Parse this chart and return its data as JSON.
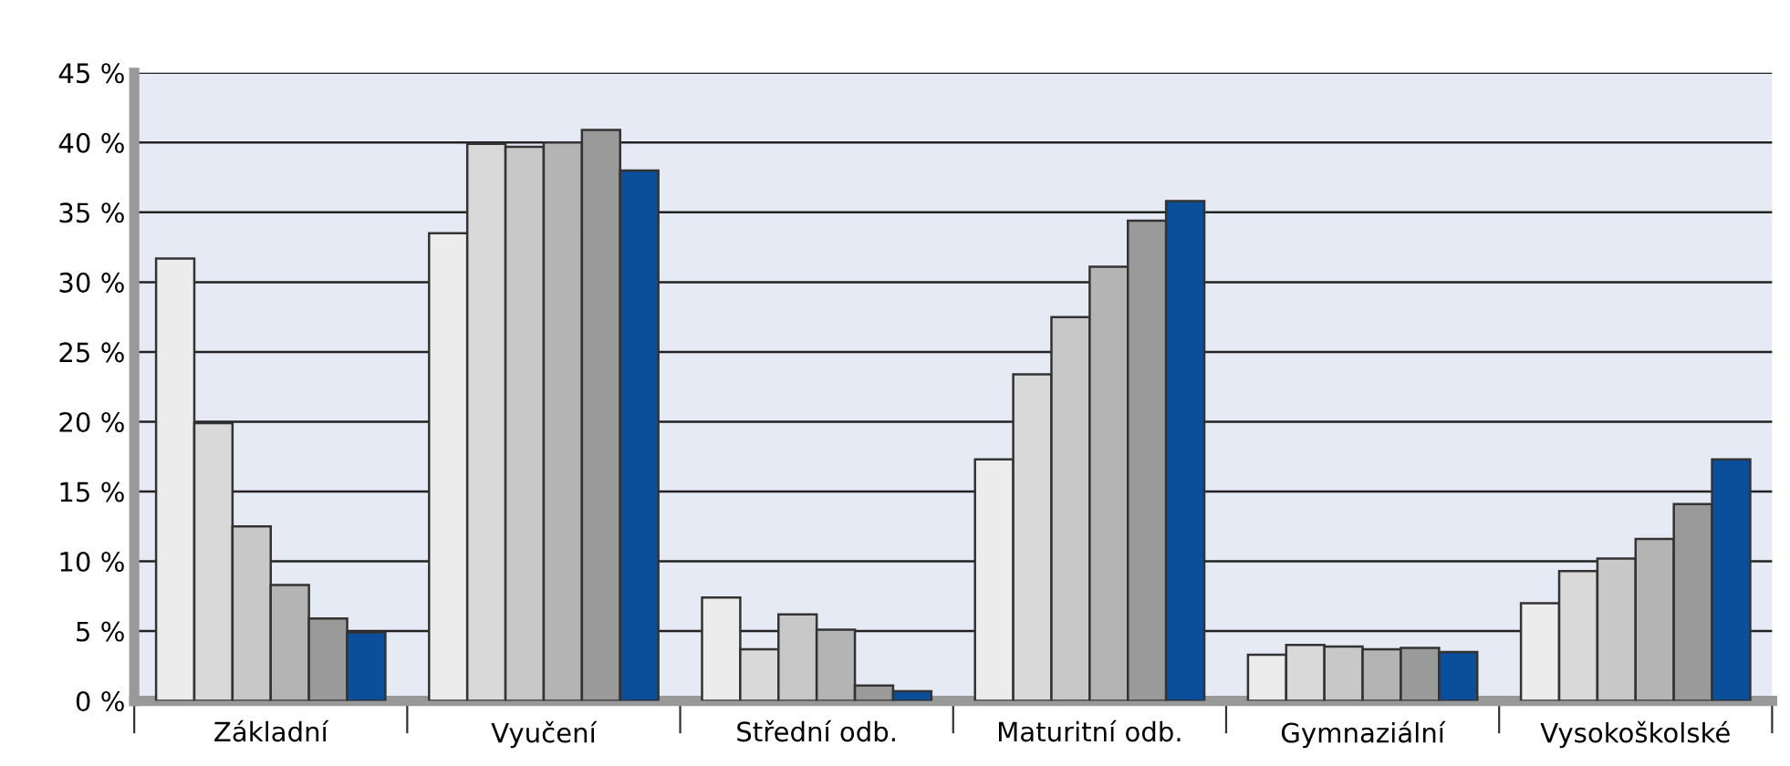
{
  "chart_data": {
    "type": "bar",
    "categories": [
      "Základní",
      "Vyučení",
      "Střední odb.",
      "Maturitní odb.",
      "Gymnaziální",
      "Vysokoškolské"
    ],
    "series": [
      {
        "color": "#ececec",
        "values": [
          31.7,
          33.5,
          7.4,
          17.3,
          3.3,
          7.0
        ]
      },
      {
        "color": "#d9d9d9",
        "values": [
          19.9,
          39.9,
          3.7,
          23.4,
          4.0,
          9.3
        ]
      },
      {
        "color": "#c8c8c8",
        "values": [
          12.5,
          39.7,
          6.2,
          27.5,
          3.9,
          10.2
        ]
      },
      {
        "color": "#b4b4b4",
        "values": [
          8.3,
          40.0,
          5.1,
          31.1,
          3.7,
          11.6
        ]
      },
      {
        "color": "#9a9a9a",
        "values": [
          5.9,
          40.9,
          1.1,
          34.4,
          3.8,
          14.1
        ]
      },
      {
        "color": "#0b4f9a",
        "values": [
          4.9,
          38.0,
          0.7,
          35.8,
          3.5,
          17.3
        ]
      }
    ],
    "ylim": [
      0,
      45
    ],
    "yticks": [
      {
        "value": 0,
        "label": "0 %"
      },
      {
        "value": 5,
        "label": "5 %"
      },
      {
        "value": 10,
        "label": "10 %"
      },
      {
        "value": 15,
        "label": "15 %"
      },
      {
        "value": 20,
        "label": "20 %"
      },
      {
        "value": 25,
        "label": "25 %"
      },
      {
        "value": 30,
        "label": "30 %"
      },
      {
        "value": 35,
        "label": "35 %"
      },
      {
        "value": 40,
        "label": "40 %"
      },
      {
        "value": 45,
        "label": "45 %"
      }
    ],
    "grid": "y"
  }
}
